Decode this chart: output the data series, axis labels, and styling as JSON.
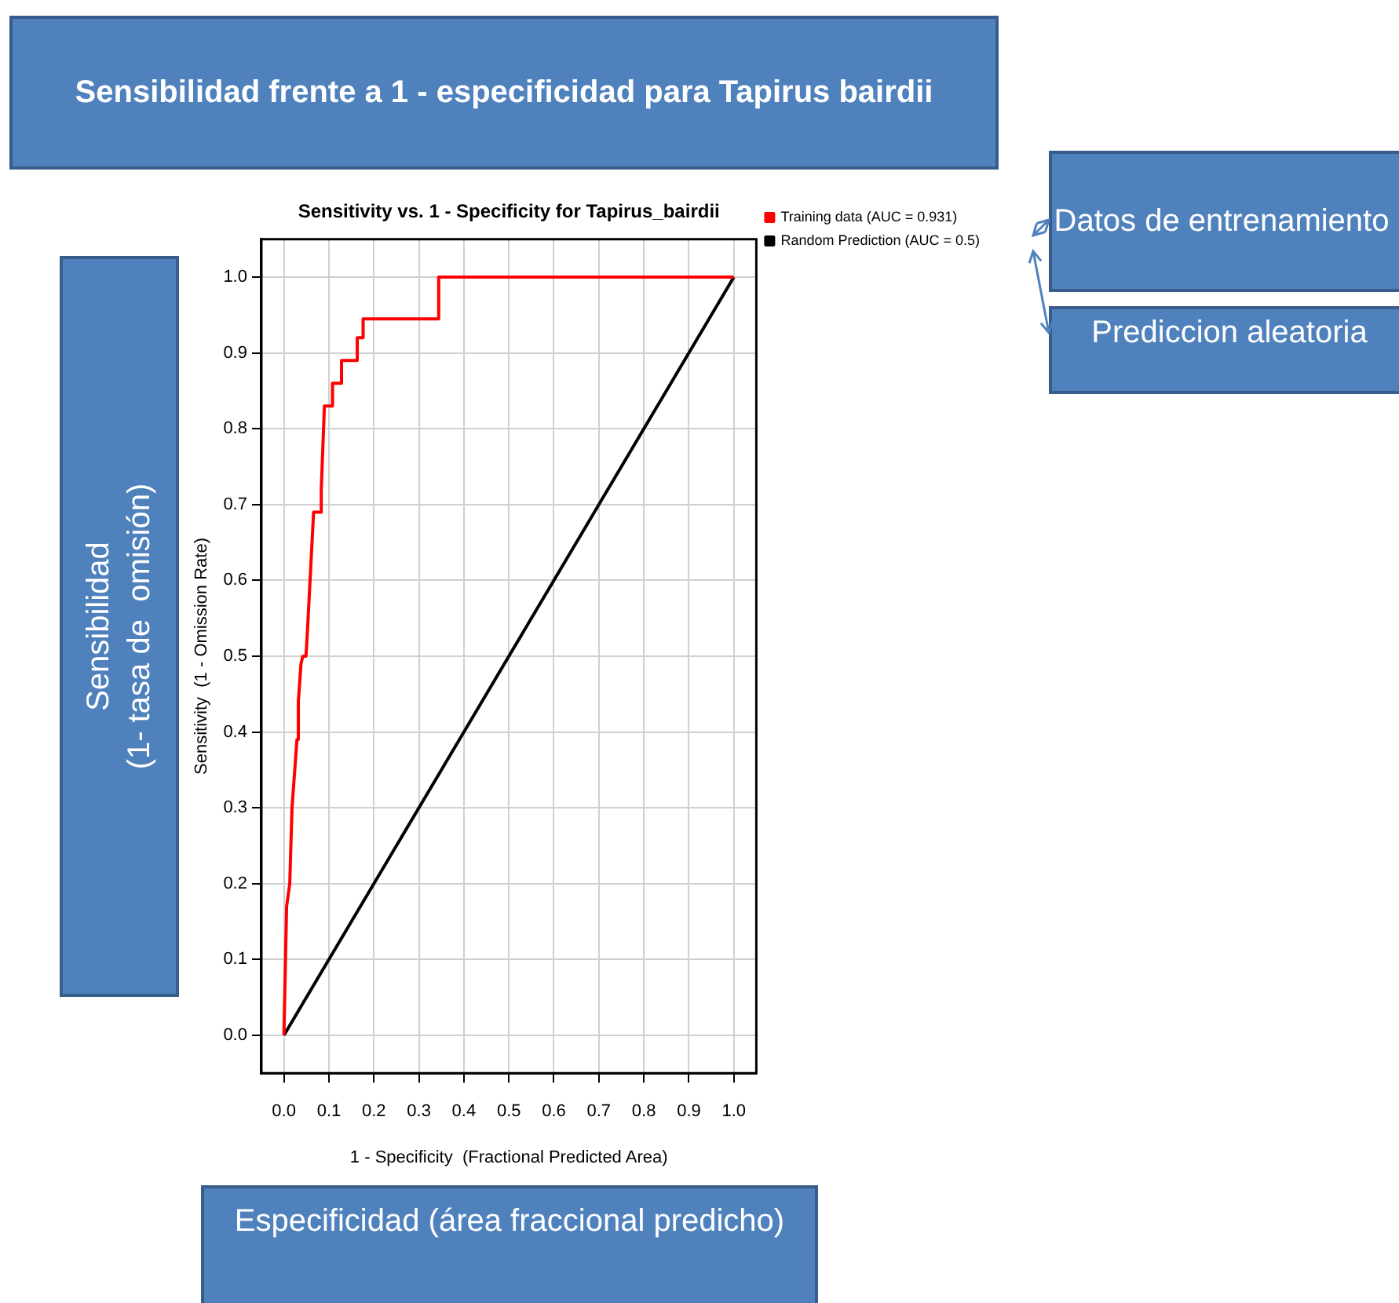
{
  "chart_data": {
    "type": "line",
    "title": "Sensitivity vs. 1 - Specificity for Tapirus_bairdii",
    "xlabel": "1 - Specificity  (Fractional Predicted Area)",
    "ylabel": "Sensitivity  (1 - Omission Rate)",
    "xlim": [
      -0.05,
      1.05
    ],
    "ylim": [
      -0.05,
      1.05
    ],
    "xticks": [
      {
        "value": 0,
        "label": "0.0"
      },
      0.1,
      0.2,
      0.3,
      0.4,
      0.5,
      0.6,
      0.7,
      0.8,
      0.9,
      {
        "value": 1,
        "label": "1.0"
      }
    ],
    "yticks": [
      {
        "value": 0,
        "label": "0.0"
      },
      0.1,
      0.2,
      0.3,
      0.4,
      0.5,
      0.6,
      0.7,
      0.8,
      0.9,
      {
        "value": 1,
        "label": "1.0"
      }
    ],
    "grid": true,
    "legend": "top right",
    "marker": "none",
    "line_style": "solid",
    "series": [
      {
        "name": "Training data (AUC = 0.931)",
        "color": "#ff0000",
        "type": "line",
        "x": [
          0,
          0.006,
          0.013,
          0.018,
          0.029,
          0.032,
          0.038,
          0.042,
          0.049,
          0.052,
          0.066,
          0.081,
          0.083,
          0.09,
          0.108,
          0.108,
          0.128,
          0.128,
          0.163,
          0.163,
          0.176,
          0.176,
          0.344,
          0.344,
          1.0
        ],
        "values": [
          0,
          0.17,
          0.2,
          0.3,
          0.39,
          0.44,
          0.49,
          0.5,
          0.5,
          0.53,
          0.69,
          0.69,
          0.72,
          0.83,
          0.83,
          0.86,
          0.86,
          0.89,
          0.89,
          0.92,
          0.92,
          0.945,
          0.945,
          1.0,
          1.0
        ]
      },
      {
        "name": "Random Prediction (AUC = 0.5)",
        "color": "#000000",
        "type": "line",
        "x": [
          0,
          1
        ],
        "values": [
          0,
          1
        ]
      }
    ],
    "annotations": [
      "Sensibilidad frente a 1 - especificidad para Tapirus bairdii",
      "Sensibilidad\n(1- tasa de  omisión)",
      "Especificidad (área fraccional predicho)",
      "Datos de entrenamiento",
      "Prediccion aleatoria"
    ]
  }
}
